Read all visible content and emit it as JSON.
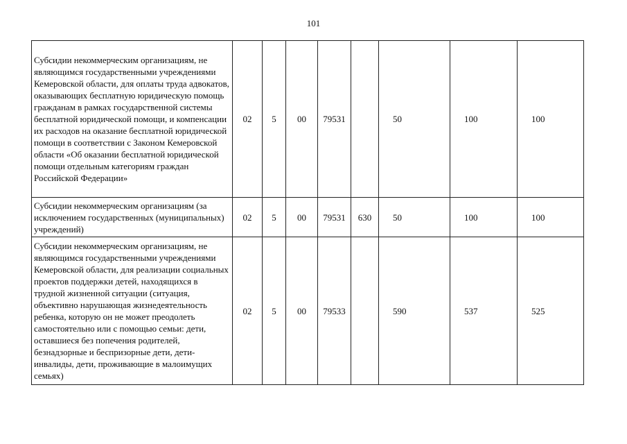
{
  "page_number": "101",
  "rows": [
    {
      "description": "Субсидии некоммерческим организациям, не являющимся государственными учреждениями Кемеровской области, для оплаты труда адвокатов, оказывающих бесплатную юридическую помощь гражданам в рамках государственной системы бесплатной юридической помощи, и компенсации их расходов на оказание бесплатной юридической помощи в соответствии с Законом Кемеровской области «Об оказании бесплатной юридической помощи отдельным категориям граждан Российской Федерации»",
      "c1": "02",
      "c2": "5",
      "c3": "00",
      "c4": "79531",
      "c5": "",
      "v1": "50",
      "v2": "100",
      "v3": "100"
    },
    {
      "description": "Субсидии некоммерческим организациям (за исключением государственных (муниципальных) учреждений)",
      "c1": "02",
      "c2": "5",
      "c3": "00",
      "c4": "79531",
      "c5": "630",
      "v1": "50",
      "v2": "100",
      "v3": "100"
    },
    {
      "description": "Субсидии некоммерческим организациям, не являющимся государственными учреждениями Кемеровской области, для реализации социальных проектов поддержки детей, находящихся в трудной жизненной ситуации (ситуация, объективно нарушающая жизнедеятельность ребенка, которую он не может преодолеть самостоятельно или с помощью семьи: дети, оставшиеся без попечения родителей, безнадзорные и беспризорные дети, дети-инвалиды, дети, проживающие в малоимущих семьях)",
      "c1": "02",
      "c2": "5",
      "c3": "00",
      "c4": "79533",
      "c5": "",
      "v1": "590",
      "v2": "537",
      "v3": "525"
    }
  ]
}
